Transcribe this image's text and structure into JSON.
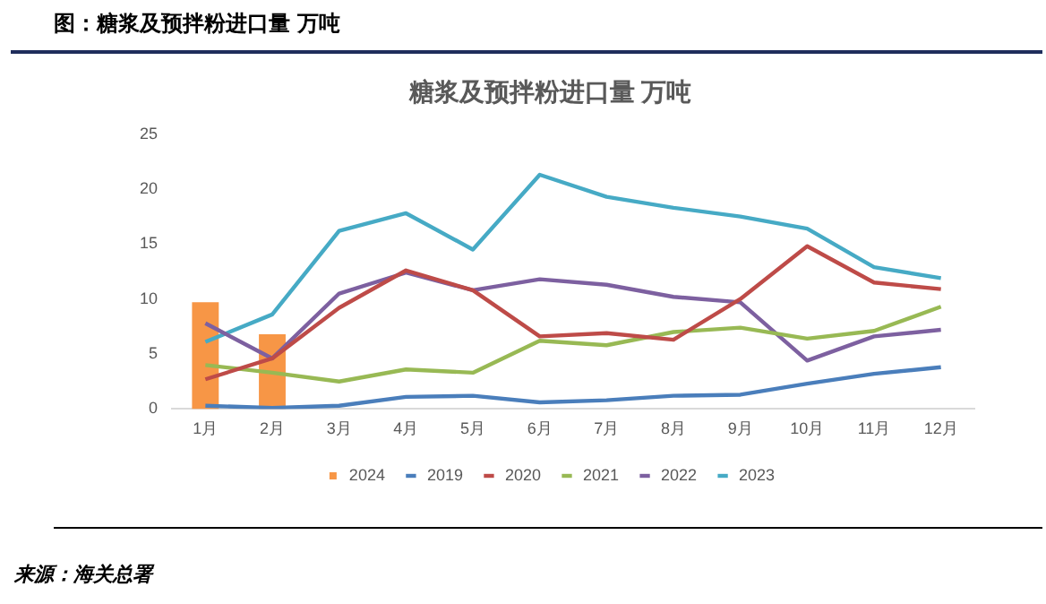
{
  "chart_data": {
    "type": "line",
    "title": "图：糖浆及预拌粉进口量 万吨",
    "subtitle": "糖浆及预拌粉进口量 万吨",
    "categories": [
      "1月",
      "2月",
      "3月",
      "4月",
      "5月",
      "6月",
      "7月",
      "8月",
      "9月",
      "10月",
      "11月",
      "12月"
    ],
    "series": [
      {
        "name": "2024",
        "type": "bar",
        "color": "#f79646",
        "values": [
          9.7,
          6.8,
          null,
          null,
          null,
          null,
          null,
          null,
          null,
          null,
          null,
          null
        ]
      },
      {
        "name": "2019",
        "color": "#4a7ebb",
        "values": [
          0.3,
          0.1,
          0.3,
          1.1,
          1.2,
          0.6,
          0.8,
          1.2,
          1.3,
          2.3,
          3.2,
          3.8
        ]
      },
      {
        "name": "2020",
        "color": "#be4b48",
        "values": [
          2.7,
          4.6,
          9.2,
          12.6,
          10.8,
          6.6,
          6.9,
          6.3,
          10,
          14.8,
          11.5,
          10.9
        ]
      },
      {
        "name": "2021",
        "color": "#98b954",
        "values": [
          4.0,
          3.3,
          2.5,
          3.6,
          3.3,
          6.2,
          5.8,
          7.0,
          7.4,
          6.4,
          7.1,
          9.3
        ]
      },
      {
        "name": "2022",
        "color": "#7d60a0",
        "values": [
          7.8,
          4.6,
          10.5,
          12.4,
          10.8,
          11.8,
          11.3,
          10.2,
          9.7,
          4.4,
          6.6,
          7.2
        ]
      },
      {
        "name": "2023",
        "color": "#46aac5",
        "values": [
          6.1,
          8.6,
          16.2,
          17.8,
          14.5,
          21.3,
          19.3,
          18.3,
          17.5,
          16.4,
          12.9,
          11.9
        ]
      }
    ],
    "ylim": [
      0,
      25
    ],
    "yticks": [
      0,
      5,
      10,
      15,
      20,
      25
    ],
    "grid": false,
    "legend": "bottom",
    "marker": "none",
    "line_style": "solid",
    "annotations": [
      "来源：海关总署"
    ]
  }
}
